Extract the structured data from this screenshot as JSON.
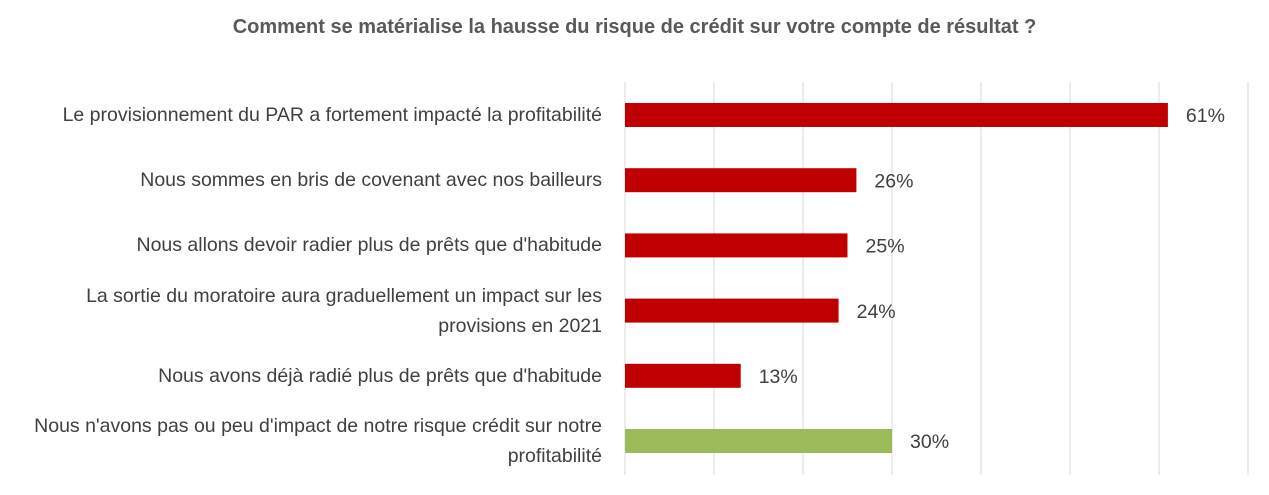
{
  "chart_data": {
    "type": "barh",
    "title": "Comment se matérialise la hausse du risque de crédit sur votre compte de résultat ?",
    "categories": [
      "Le provisionnement du PAR a fortement impacté la profitabilité",
      "Nous sommes en bris de covenant avec nos bailleurs",
      "Nous allons devoir radier plus de prêts que d'habitude",
      "La sortie du moratoire aura graduellement un impact sur les provisions en 2021",
      "Nous avons déjà radié plus de prêts que d'habitude",
      "Nous n'avons pas ou peu d'impact de notre risque crédit sur notre profitabilité"
    ],
    "values": [
      61,
      26,
      25,
      24,
      13,
      30
    ],
    "value_labels": [
      "61%",
      "26%",
      "25%",
      "24%",
      "13%",
      "30%"
    ],
    "colors": [
      "#c00000",
      "#c00000",
      "#c00000",
      "#c00000",
      "#c00000",
      "#9bbb59"
    ],
    "xlim": [
      0,
      70
    ],
    "xticks": [
      0,
      10,
      20,
      30,
      40,
      50,
      60,
      70
    ],
    "grid": true
  }
}
